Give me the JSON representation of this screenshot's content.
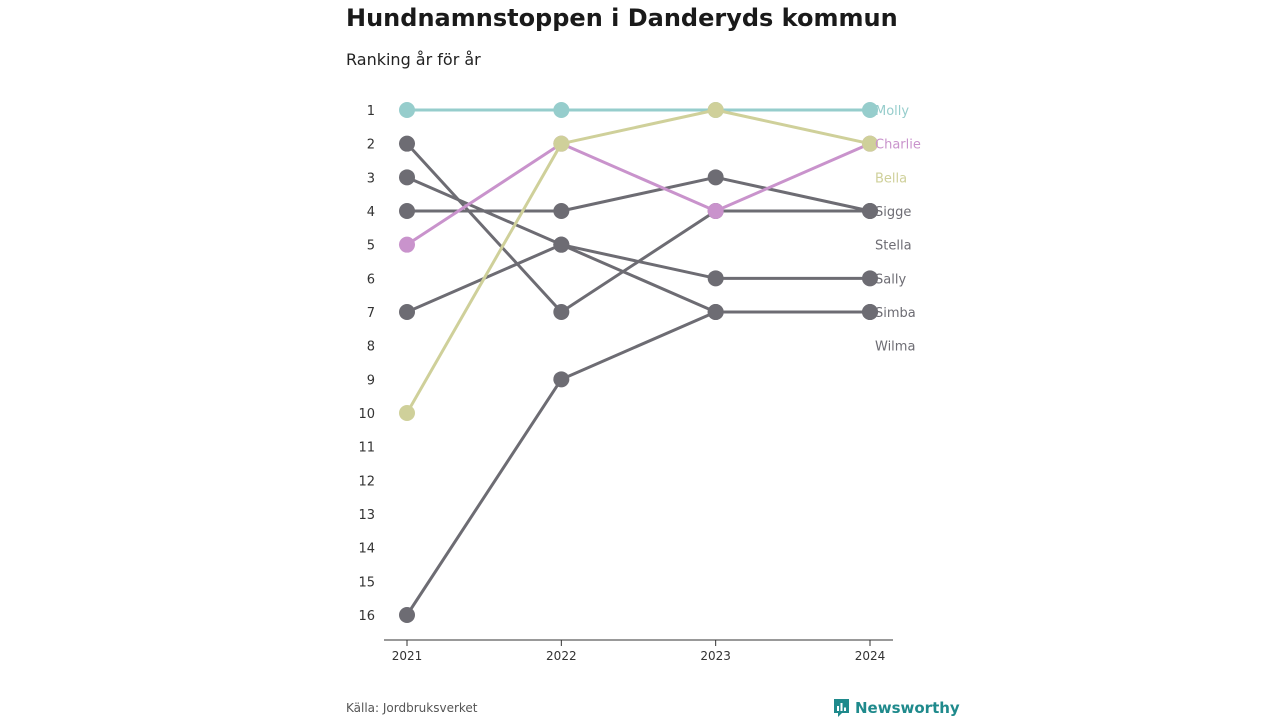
{
  "title": "Hundnamnstoppen i Danderyds kommun",
  "subtitle": "Ranking år för år",
  "source": "Källa: Jordbruksverket",
  "brand": "Newsworthy",
  "colors": {
    "molly": "#96cdcc",
    "charlie": "#c993cc",
    "bella": "#cfd09a",
    "other": "#6d6c73",
    "axis": "#333333",
    "brand": "#1f8a8c"
  },
  "chart_data": {
    "type": "line",
    "x": [
      "2021",
      "2022",
      "2023",
      "2024"
    ],
    "ylabel": "",
    "ylim": [
      1,
      16
    ],
    "y_ticks": [
      "1",
      "2",
      "3",
      "4",
      "5",
      "6",
      "7",
      "8",
      "9",
      "10",
      "11",
      "12",
      "13",
      "14",
      "15",
      "16"
    ],
    "y_inverted": true,
    "series": [
      {
        "name": "Molly",
        "values": [
          1,
          1,
          1,
          1
        ],
        "color": "#96cdcc"
      },
      {
        "name": "Charlie",
        "values": [
          5,
          2,
          4,
          2
        ],
        "color": "#c993cc"
      },
      {
        "name": "Bella",
        "values": [
          10,
          2,
          1,
          2
        ],
        "color": "#cfd09a"
      },
      {
        "name": "Sigge",
        "values": [
          4,
          4,
          3,
          4
        ],
        "color": "#6d6c73"
      },
      {
        "name": "Stella",
        "values": [
          3,
          5,
          7,
          7
        ],
        "color": "#6d6c73"
      },
      {
        "name": "Sally",
        "values": [
          7,
          5,
          6,
          6
        ],
        "color": "#6d6c73"
      },
      {
        "name": "Simba",
        "values": [
          2,
          7,
          4,
          4
        ],
        "color": "#6d6c73"
      },
      {
        "name": "Wilma",
        "values": [
          16,
          9,
          7,
          7
        ],
        "color": "#6d6c73"
      }
    ],
    "end_labels": [
      {
        "text": "Molly",
        "rank": 1,
        "color": "#96cdcc"
      },
      {
        "text": "Charlie",
        "rank": 2,
        "color": "#c993cc"
      },
      {
        "text": "Bella",
        "rank": 3,
        "color": "#cfd09a"
      },
      {
        "text": "Sigge",
        "rank": 4,
        "color": "#6d6c73"
      },
      {
        "text": "Stella",
        "rank": 5,
        "color": "#6d6c73"
      },
      {
        "text": "Sally",
        "rank": 6,
        "color": "#6d6c73"
      },
      {
        "text": "Simba",
        "rank": 7,
        "color": "#6d6c73"
      },
      {
        "text": "Wilma",
        "rank": 8,
        "color": "#6d6c73"
      }
    ],
    "grid": false,
    "legend": "direct-labels-right"
  }
}
